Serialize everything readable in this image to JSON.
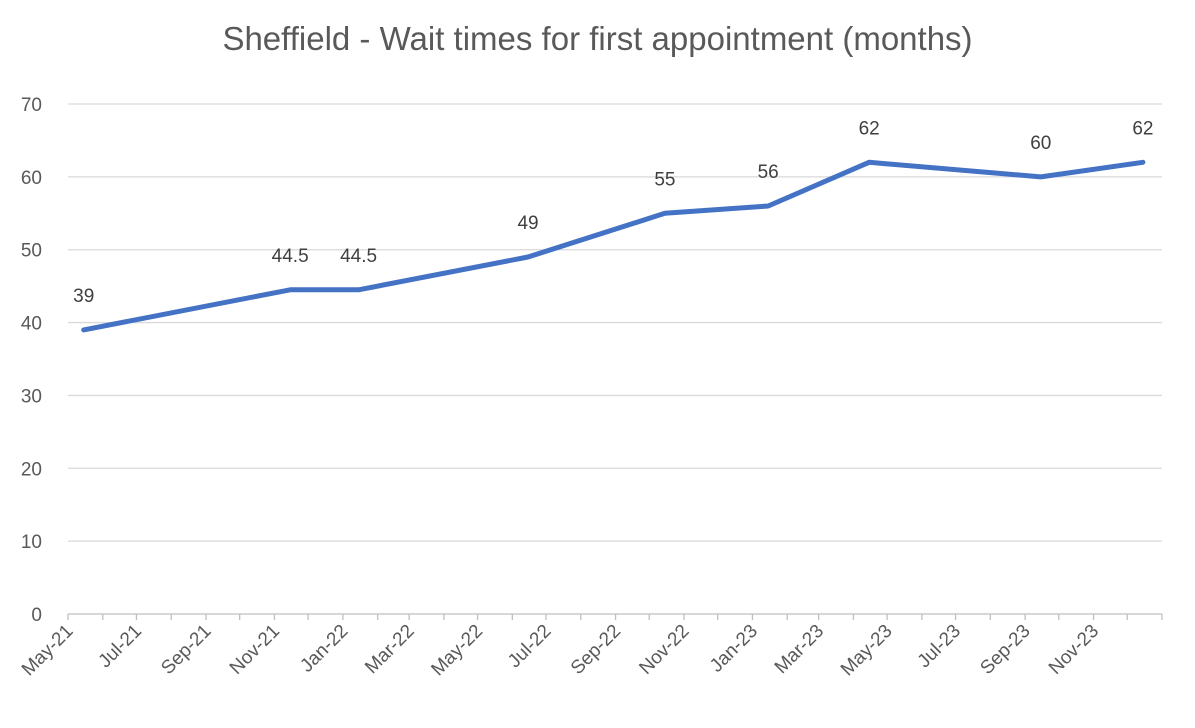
{
  "chart_data": {
    "type": "line",
    "title": "Sheffield - Wait times for first appointment (months)",
    "xlabel": "",
    "ylabel": "",
    "ylim": [
      0,
      70
    ],
    "yticks": [
      0,
      10,
      20,
      30,
      40,
      50,
      60,
      70
    ],
    "xlim": [
      "2021-05-01",
      "2024-01-01"
    ],
    "x_tick_labels": [
      {
        "date": "2021-05-01",
        "label": "May-21"
      },
      {
        "date": "2021-07-01",
        "label": "Jul-21"
      },
      {
        "date": "2021-09-01",
        "label": "Sep-21"
      },
      {
        "date": "2021-11-01",
        "label": "Nov-21"
      },
      {
        "date": "2022-01-01",
        "label": "Jan-22"
      },
      {
        "date": "2022-03-01",
        "label": "Mar-22"
      },
      {
        "date": "2022-05-01",
        "label": "May-22"
      },
      {
        "date": "2022-07-01",
        "label": "Jul-22"
      },
      {
        "date": "2022-09-01",
        "label": "Sep-22"
      },
      {
        "date": "2022-11-01",
        "label": "Nov-22"
      },
      {
        "date": "2023-01-01",
        "label": "Jan-23"
      },
      {
        "date": "2023-03-01",
        "label": "Mar-23"
      },
      {
        "date": "2023-05-01",
        "label": "May-23"
      },
      {
        "date": "2023-07-01",
        "label": "Jul-23"
      },
      {
        "date": "2023-09-01",
        "label": "Sep-23"
      },
      {
        "date": "2023-11-01",
        "label": "Nov-23"
      }
    ],
    "grid": true,
    "legend": false,
    "series": [
      {
        "color": "#4472C4",
        "points": [
          {
            "x": "2021-05-15",
            "y": 39,
            "label": "39"
          },
          {
            "x": "2021-11-15",
            "y": 44.5,
            "label": "44.5"
          },
          {
            "x": "2022-01-15",
            "y": 44.5,
            "label": "44.5"
          },
          {
            "x": "2022-06-15",
            "y": 49,
            "label": "49"
          },
          {
            "x": "2022-10-15",
            "y": 55,
            "label": "55"
          },
          {
            "x": "2023-01-15",
            "y": 56,
            "label": "56"
          },
          {
            "x": "2023-04-15",
            "y": 62,
            "label": "62"
          },
          {
            "x": "2023-09-15",
            "y": 60,
            "label": "60"
          },
          {
            "x": "2023-12-15",
            "y": 62,
            "label": "62"
          }
        ]
      }
    ]
  }
}
